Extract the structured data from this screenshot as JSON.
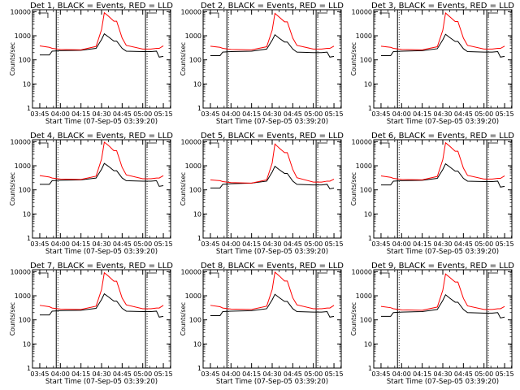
{
  "colors": {
    "events": "#000000",
    "lld": "#ff0000",
    "axes": "#000000",
    "background": "#ffffff"
  },
  "x_tick_labels": [
    "03:45",
    "04:00",
    "04:15",
    "04:30",
    "04:45",
    "05:00",
    "05:15"
  ],
  "y_tick_labels": [
    "1",
    "10",
    "100",
    "1000",
    "10000"
  ],
  "xlabel": "Start Time (07-Sep-05 03:39:20)",
  "ylabel": "Counts/sec",
  "chart_data": [
    {
      "type": "line",
      "title": "Det 1, BLACK = Events, RED = LLD",
      "x": [
        "03:45",
        "03:52",
        "03:54",
        "04:00",
        "04:15",
        "04:26",
        "04:30",
        "04:32",
        "04:35",
        "04:39",
        "04:41",
        "04:45",
        "04:48",
        "05:00",
        "05:06",
        "05:10",
        "05:12",
        "05:15"
      ],
      "x_range_minutes": [
        -5.3,
        95.3
      ],
      "ylim": [
        1,
        12000
      ],
      "yscale": "log",
      "vertical_markers": [
        "03:57",
        "05:02"
      ],
      "series": [
        {
          "name": "BLACK = Events",
          "values": [
            160,
            160,
            230,
            240,
            250,
            300,
            700,
            1200,
            900,
            600,
            600,
            300,
            230,
            220,
            220,
            230,
            130,
            140
          ]
        },
        {
          "name": "RED = LLD",
          "values": [
            380,
            330,
            300,
            270,
            260,
            360,
            1800,
            9000,
            6500,
            4000,
            4000,
            800,
            400,
            280,
            280,
            300,
            300,
            380
          ]
        }
      ]
    },
    {
      "type": "line",
      "title": "Det 2, BLACK = Events, RED = LLD",
      "x": [
        "03:45",
        "03:52",
        "03:54",
        "04:00",
        "04:15",
        "04:26",
        "04:30",
        "04:32",
        "04:35",
        "04:39",
        "04:41",
        "04:45",
        "04:48",
        "05:00",
        "05:06",
        "05:10",
        "05:12",
        "05:15"
      ],
      "x_range_minutes": [
        -5.3,
        95.3
      ],
      "ylim": [
        1,
        12000
      ],
      "yscale": "log",
      "vertical_markers": [
        "03:57",
        "05:02"
      ],
      "series": [
        {
          "name": "BLACK = Events",
          "values": [
            150,
            150,
            210,
            220,
            230,
            280,
            650,
            1100,
            800,
            550,
            550,
            280,
            210,
            200,
            200,
            210,
            130,
            140
          ]
        },
        {
          "name": "RED = LLD",
          "values": [
            370,
            330,
            300,
            270,
            260,
            350,
            1700,
            8500,
            6000,
            3800,
            3800,
            800,
            400,
            280,
            280,
            300,
            300,
            370
          ]
        }
      ]
    },
    {
      "type": "line",
      "title": "Det 3, BLACK = Events, RED = LLD",
      "x": [
        "03:45",
        "03:52",
        "03:54",
        "04:00",
        "04:15",
        "04:26",
        "04:30",
        "04:32",
        "04:35",
        "04:39",
        "04:41",
        "04:45",
        "04:48",
        "05:00",
        "05:06",
        "05:10",
        "05:12",
        "05:15"
      ],
      "x_range_minutes": [
        -5.3,
        95.3
      ],
      "ylim": [
        1,
        12000
      ],
      "yscale": "log",
      "vertical_markers": [
        "03:57",
        "05:02"
      ],
      "series": [
        {
          "name": "BLACK = Events",
          "values": [
            150,
            150,
            220,
            230,
            240,
            290,
            680,
            1150,
            850,
            580,
            580,
            290,
            220,
            210,
            210,
            220,
            130,
            140
          ]
        },
        {
          "name": "RED = LLD",
          "values": [
            370,
            330,
            300,
            270,
            260,
            350,
            1700,
            8800,
            6200,
            3900,
            3900,
            800,
            400,
            280,
            280,
            300,
            300,
            370
          ]
        }
      ]
    },
    {
      "type": "line",
      "title": "Det 4, BLACK = Events, RED = LLD",
      "x": [
        "03:45",
        "03:52",
        "03:54",
        "04:00",
        "04:15",
        "04:26",
        "04:30",
        "04:32",
        "04:35",
        "04:39",
        "04:41",
        "04:45",
        "04:48",
        "05:00",
        "05:06",
        "05:10",
        "05:12",
        "05:15"
      ],
      "x_range_minutes": [
        -5.3,
        95.3
      ],
      "ylim": [
        1,
        12000
      ],
      "yscale": "log",
      "vertical_markers": [
        "03:57",
        "05:02"
      ],
      "series": [
        {
          "name": "BLACK = Events",
          "values": [
            170,
            170,
            240,
            250,
            260,
            310,
            720,
            1250,
            950,
            620,
            620,
            310,
            240,
            230,
            230,
            240,
            140,
            150
          ]
        },
        {
          "name": "RED = LLD",
          "values": [
            390,
            340,
            310,
            280,
            270,
            370,
            1900,
            9500,
            7000,
            4200,
            4200,
            850,
            420,
            290,
            290,
            310,
            310,
            390
          ]
        }
      ]
    },
    {
      "type": "line",
      "title": "Det 5, BLACK = Events, RED = LLD",
      "x": [
        "03:45",
        "03:52",
        "03:54",
        "04:00",
        "04:15",
        "04:26",
        "04:30",
        "04:32",
        "04:35",
        "04:39",
        "04:41",
        "04:45",
        "04:48",
        "05:00",
        "05:06",
        "05:10",
        "05:12",
        "05:15"
      ],
      "x_range_minutes": [
        -5.3,
        95.3
      ],
      "ylim": [
        1,
        12000
      ],
      "yscale": "log",
      "vertical_markers": [
        "03:57",
        "05:02"
      ],
      "series": [
        {
          "name": "BLACK = Events",
          "values": [
            120,
            120,
            170,
            180,
            190,
            230,
            550,
            950,
            700,
            480,
            480,
            230,
            170,
            160,
            160,
            170,
            110,
            120
          ]
        },
        {
          "name": "RED = LLD",
          "values": [
            260,
            240,
            220,
            200,
            190,
            260,
            1300,
            8000,
            5500,
            3500,
            3500,
            700,
            320,
            210,
            210,
            230,
            230,
            280
          ]
        }
      ]
    },
    {
      "type": "line",
      "title": "Det 6, BLACK = Events, RED = LLD",
      "x": [
        "03:45",
        "03:52",
        "03:54",
        "04:00",
        "04:15",
        "04:26",
        "04:30",
        "04:32",
        "04:35",
        "04:39",
        "04:41",
        "04:45",
        "04:48",
        "05:00",
        "05:06",
        "05:10",
        "05:12",
        "05:15"
      ],
      "x_range_minutes": [
        -5.3,
        95.3
      ],
      "ylim": [
        1,
        12000
      ],
      "yscale": "log",
      "vertical_markers": [
        "03:57",
        "05:02"
      ],
      "series": [
        {
          "name": "BLACK = Events",
          "values": [
            160,
            160,
            230,
            240,
            250,
            300,
            700,
            1200,
            900,
            600,
            600,
            300,
            230,
            220,
            220,
            230,
            130,
            140
          ]
        },
        {
          "name": "RED = LLD",
          "values": [
            380,
            330,
            300,
            270,
            260,
            360,
            1800,
            9000,
            6500,
            4000,
            4000,
            800,
            400,
            280,
            280,
            300,
            300,
            380
          ]
        }
      ]
    },
    {
      "type": "line",
      "title": "Det 7, BLACK = Events, RED = LLD",
      "x": [
        "03:45",
        "03:52",
        "03:54",
        "04:00",
        "04:15",
        "04:26",
        "04:30",
        "04:32",
        "04:35",
        "04:39",
        "04:41",
        "04:45",
        "04:48",
        "05:00",
        "05:06",
        "05:10",
        "05:12",
        "05:15"
      ],
      "x_range_minutes": [
        -5.3,
        95.3
      ],
      "ylim": [
        1,
        12000
      ],
      "yscale": "log",
      "vertical_markers": [
        "03:57",
        "05:02"
      ],
      "series": [
        {
          "name": "BLACK = Events",
          "values": [
            160,
            160,
            230,
            240,
            250,
            300,
            700,
            1200,
            900,
            600,
            600,
            300,
            230,
            220,
            220,
            230,
            130,
            140
          ]
        },
        {
          "name": "RED = LLD",
          "values": [
            400,
            350,
            310,
            280,
            270,
            370,
            1800,
            9000,
            6500,
            4000,
            4000,
            800,
            420,
            290,
            290,
            310,
            310,
            400
          ]
        }
      ]
    },
    {
      "type": "line",
      "title": "Det 8, BLACK = Events, RED = LLD",
      "x": [
        "03:45",
        "03:52",
        "03:54",
        "04:00",
        "04:15",
        "04:26",
        "04:30",
        "04:32",
        "04:35",
        "04:39",
        "04:41",
        "04:45",
        "04:48",
        "05:00",
        "05:06",
        "05:10",
        "05:12",
        "05:15"
      ],
      "x_range_minutes": [
        -5.3,
        95.3
      ],
      "ylim": [
        1,
        12000
      ],
      "yscale": "log",
      "vertical_markers": [
        "03:57",
        "05:02"
      ],
      "series": [
        {
          "name": "BLACK = Events",
          "values": [
            150,
            150,
            220,
            230,
            240,
            290,
            680,
            1150,
            850,
            580,
            580,
            290,
            220,
            210,
            210,
            220,
            130,
            140
          ]
        },
        {
          "name": "RED = LLD",
          "values": [
            400,
            350,
            310,
            280,
            270,
            370,
            1800,
            9500,
            6800,
            4100,
            4100,
            820,
            420,
            290,
            290,
            310,
            310,
            400
          ]
        }
      ]
    },
    {
      "type": "line",
      "title": "Det 9, BLACK = Events, RED = LLD",
      "x": [
        "03:45",
        "03:52",
        "03:54",
        "04:00",
        "04:15",
        "04:26",
        "04:30",
        "04:32",
        "04:35",
        "04:39",
        "04:41",
        "04:45",
        "04:48",
        "05:00",
        "05:06",
        "05:10",
        "05:12",
        "05:15"
      ],
      "x_range_minutes": [
        -5.3,
        95.3
      ],
      "ylim": [
        1,
        12000
      ],
      "yscale": "log",
      "vertical_markers": [
        "03:57",
        "05:02"
      ],
      "series": [
        {
          "name": "BLACK = Events",
          "values": [
            140,
            140,
            200,
            210,
            220,
            270,
            640,
            1100,
            800,
            540,
            540,
            270,
            200,
            190,
            190,
            200,
            120,
            130
          ]
        },
        {
          "name": "RED = LLD",
          "values": [
            360,
            320,
            290,
            260,
            250,
            340,
            1700,
            8000,
            5800,
            3700,
            3700,
            780,
            380,
            270,
            270,
            290,
            290,
            360
          ]
        }
      ]
    }
  ]
}
